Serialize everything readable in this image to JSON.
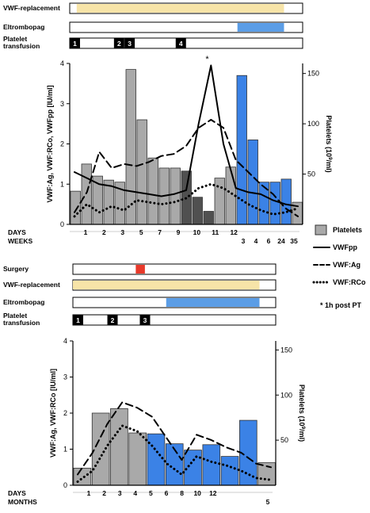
{
  "chart_data": [
    {
      "type": "bar",
      "panel": "top",
      "y_axis_left": {
        "label": "VWF:Ag, VWF:RCo, VWFpp [IU/ml]",
        "ticks": [
          "0",
          "1",
          "2",
          "3",
          "4"
        ],
        "ylim": [
          0,
          4
        ]
      },
      "y_axis_right": {
        "label_main": "Platelets (10",
        "label_sup": "9",
        "label_tail": "/ml)",
        "ticks": [
          "50",
          "100",
          "150"
        ],
        "ylim": [
          0,
          160
        ]
      },
      "timeline": {
        "rows": [
          {
            "label": "VWF-replacement",
            "segments": [
              {
                "from": 0.03,
                "to": 0.92,
                "color": "#f7e4a8"
              }
            ]
          },
          {
            "label": "Eltrombopag",
            "segments": [
              {
                "from": 0.72,
                "to": 0.92,
                "color": "#5b9de6"
              }
            ]
          },
          {
            "label_lines": [
              "Platelet",
              "transfusion"
            ],
            "markers": [
              {
                "text": "1",
                "pos": 0.0
              },
              {
                "text": "2",
                "pos": 0.19
              },
              {
                "text": "3",
                "pos": 0.235
              },
              {
                "text": "4",
                "pos": 0.455
              }
            ]
          }
        ]
      },
      "bars": {
        "platelets_gray": [
          33,
          60,
          48,
          44,
          42,
          154,
          104,
          66,
          56,
          56
        ],
        "platelets_dark": [
          53,
          27,
          13
        ],
        "platelets_gray2": [
          46,
          57
        ],
        "platelets_blue": [
          148,
          84,
          42,
          42,
          45
        ],
        "platelets_gray3": [
          22
        ]
      },
      "series": [
        {
          "name": "VWFpp",
          "style": "solid",
          "values": [
            1.3,
            1.15,
            1.0,
            0.95,
            0.85,
            0.8,
            0.75,
            0.7,
            0.75,
            0.85,
            2.5,
            3.95,
            2.0,
            0.9,
            0.8,
            0.75,
            0.6,
            0.5,
            0.45
          ]
        },
        {
          "name": "VWF:Ag",
          "style": "dashed",
          "values": [
            0.3,
            0.8,
            1.8,
            1.4,
            1.5,
            1.45,
            1.55,
            1.7,
            1.75,
            1.95,
            2.4,
            2.6,
            2.4,
            1.6,
            1.3,
            1.0,
            0.75,
            0.4,
            0.2
          ]
        },
        {
          "name": "VWF:RCo",
          "style": "dotted",
          "values": [
            0.2,
            0.5,
            0.3,
            0.45,
            0.35,
            0.6,
            0.55,
            0.5,
            0.55,
            0.65,
            0.9,
            1.0,
            0.9,
            0.7,
            0.5,
            0.35,
            0.25,
            0.3,
            0.4
          ]
        }
      ],
      "annotation_star": "*",
      "x_rows": {
        "days_label": "DAYS",
        "days": [
          "1",
          "2",
          "3",
          "5",
          "7",
          "9",
          "10",
          "11",
          "12"
        ],
        "weeks_label": "WEEKS",
        "weeks": [
          "3",
          "4",
          "6",
          "24",
          "35"
        ]
      }
    },
    {
      "type": "bar",
      "panel": "bottom",
      "y_axis_left": {
        "label": "VWF:Ag, VWF:RCo [IU/ml]",
        "ticks": [
          "0",
          "1",
          "2",
          "3",
          "4"
        ],
        "ylim": [
          0,
          4
        ]
      },
      "y_axis_right": {
        "label_main": "Platelets (10",
        "label_sup": "9",
        "label_tail": "/ml)",
        "ticks": [
          "50",
          "100",
          "150"
        ],
        "ylim": [
          0,
          160
        ]
      },
      "timeline": {
        "rows": [
          {
            "label": "Surgery",
            "segments": [
              {
                "from": 0.31,
                "to": 0.355,
                "color": "#e8392a"
              }
            ]
          },
          {
            "label": "VWF-replacement",
            "segments": [
              {
                "from": 0.0,
                "to": 0.92,
                "color": "#f7e4a8"
              }
            ]
          },
          {
            "label": "Eltrombopag",
            "segments": [
              {
                "from": 0.46,
                "to": 0.92,
                "color": "#5b9de6"
              }
            ]
          },
          {
            "label_lines": [
              "Platelet",
              "transfusion"
            ],
            "markers": [
              {
                "text": "1",
                "pos": 0.0
              },
              {
                "text": "2",
                "pos": 0.17
              },
              {
                "text": "3",
                "pos": 0.33
              }
            ]
          }
        ]
      },
      "bars": {
        "platelets_gray": [
          19,
          80,
          85,
          58
        ],
        "platelets_blue": [
          57,
          46,
          39,
          45,
          32,
          72
        ],
        "platelets_gray3": [
          25
        ]
      },
      "series": [
        {
          "name": "VWF:Ag",
          "style": "dashed",
          "values": [
            0.3,
            0.9,
            1.7,
            2.3,
            2.15,
            1.9,
            1.3,
            0.7,
            1.4,
            1.25,
            1.05,
            0.9,
            0.6,
            0.5
          ]
        },
        {
          "name": "VWF:RCo",
          "style": "dotted",
          "values": [
            0.1,
            0.4,
            1.1,
            1.65,
            1.5,
            1.1,
            0.6,
            0.3,
            0.8,
            0.65,
            0.55,
            0.4,
            0.2,
            0.15
          ]
        }
      ],
      "x_rows": {
        "days_label": "DAYS",
        "days": [
          "1",
          "2",
          "3",
          "4",
          "5",
          "6",
          "8",
          "10",
          "12"
        ],
        "months_label": "MONTHS",
        "months": [
          "5"
        ]
      }
    }
  ],
  "legend": {
    "items": [
      {
        "name": "Platelets",
        "kind": "box"
      },
      {
        "name": "VWFpp",
        "kind": "solid"
      },
      {
        "name": "VWF:Ag",
        "kind": "dashed"
      },
      {
        "name": "VWF:RCo",
        "kind": "dotted"
      }
    ],
    "note": "* 1h post PT"
  },
  "colors": {
    "gray": "#a9a9a9",
    "dark": "#505050",
    "blue": "#3b82e6",
    "yellow": "#f7e4a8",
    "red": "#e8392a"
  }
}
